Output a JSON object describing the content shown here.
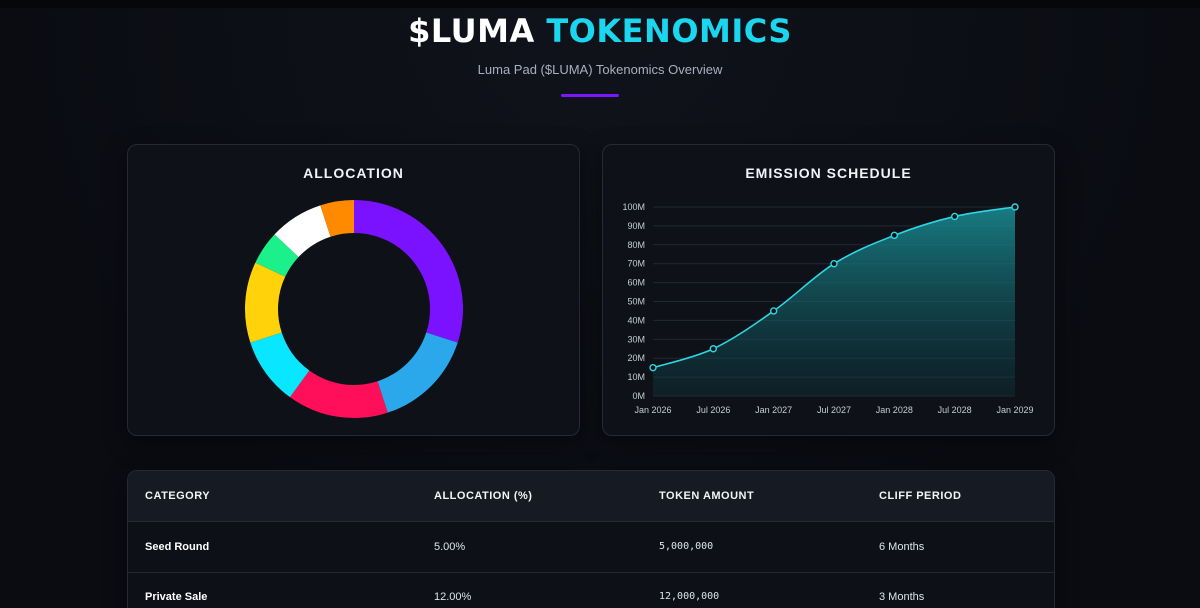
{
  "header": {
    "title_part1": "$LUMA",
    "title_part2": "TOKENOMICS",
    "subtitle": "Luma Pad ($LUMA) Tokenomics Overview",
    "accent_color": "#7b16ff",
    "highlight_color": "#1ad6ef"
  },
  "allocation_card": {
    "title": "ALLOCATION"
  },
  "emission_card": {
    "title": "EMISSION SCHEDULE"
  },
  "chart_data": [
    {
      "type": "pie",
      "variant": "donut",
      "title": "ALLOCATION",
      "slices": [
        {
          "value": 30,
          "color": "#7a12ff"
        },
        {
          "value": 15,
          "color": "#2ba8ec"
        },
        {
          "value": 15,
          "color": "#ff0f5a"
        },
        {
          "value": 10,
          "color": "#08e7ff"
        },
        {
          "value": 12,
          "color": "#ffd20a"
        },
        {
          "value": 5,
          "color": "#1cf08a"
        },
        {
          "value": 8,
          "color": "#ffffff"
        },
        {
          "value": 5,
          "color": "#ff8a00"
        }
      ]
    },
    {
      "type": "area",
      "title": "EMISSION SCHEDULE",
      "x": [
        "Jan 2026",
        "Jul 2026",
        "Jan 2027",
        "Jul 2027",
        "Jan 2028",
        "Jul 2028",
        "Jan 2029"
      ],
      "series": [
        {
          "values": [
            15,
            25,
            45,
            70,
            85,
            95,
            100
          ],
          "color": "#2fd6e2"
        }
      ],
      "yticks": [
        "0M",
        "10M",
        "20M",
        "30M",
        "40M",
        "50M",
        "60M",
        "70M",
        "80M",
        "90M",
        "100M"
      ],
      "ylim": [
        0,
        100
      ],
      "grid": true
    }
  ],
  "table": {
    "headers": [
      "CATEGORY",
      "ALLOCATION (%)",
      "TOKEN AMOUNT",
      "CLIFF PERIOD"
    ],
    "rows": [
      {
        "category": "Seed Round",
        "allocation": "5.00%",
        "amount": "5,000,000",
        "cliff": "6 Months"
      },
      {
        "category": "Private Sale",
        "allocation": "12.00%",
        "amount": "12,000,000",
        "cliff": "3 Months"
      }
    ]
  }
}
